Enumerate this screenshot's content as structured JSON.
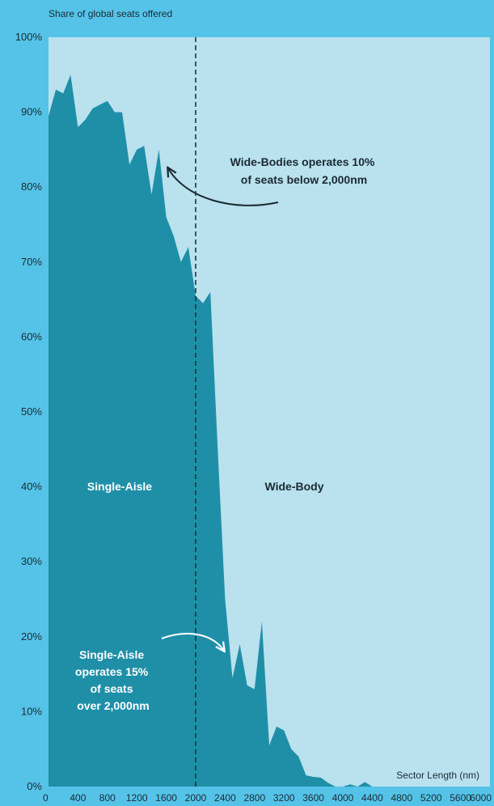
{
  "chart_data": {
    "type": "area",
    "ylabel": "Share of global seats offered",
    "xlabel": "Sector Length (nm)",
    "xlim": [
      0,
      6000
    ],
    "ylim": [
      0,
      100
    ],
    "x_ticks": [
      0,
      400,
      800,
      1200,
      1600,
      2000,
      2400,
      2800,
      3200,
      3600,
      4000,
      4400,
      4800,
      5200,
      5600,
      6000
    ],
    "y_ticks": [
      0,
      10,
      20,
      30,
      40,
      50,
      60,
      70,
      80,
      90,
      100
    ],
    "y_tick_labels": [
      "0%",
      "10%",
      "20%",
      "30%",
      "40%",
      "50%",
      "60%",
      "70%",
      "80%",
      "90%",
      "100%"
    ],
    "reference_line": {
      "x": 2000,
      "style": "dashed"
    },
    "series": [
      {
        "name": "Single-Aisle",
        "color": "#1f8fa8",
        "x": [
          0,
          100,
          200,
          300,
          400,
          500,
          600,
          700,
          800,
          900,
          1000,
          1100,
          1200,
          1300,
          1400,
          1500,
          1600,
          1700,
          1800,
          1900,
          2000,
          2100,
          2200,
          2300,
          2400,
          2500,
          2600,
          2700,
          2800,
          2900,
          3000,
          3100,
          3200,
          3300,
          3400,
          3500,
          3600,
          3700,
          3800,
          3900,
          4000,
          4100,
          4200,
          4300,
          4400,
          4500,
          4600
        ],
        "values": [
          89.5,
          93,
          92.5,
          95,
          88,
          89,
          90.5,
          91,
          91.5,
          90,
          90,
          83,
          85,
          85.5,
          79,
          85,
          76,
          73.5,
          70,
          72,
          65.5,
          64.5,
          66,
          45,
          25,
          14.5,
          19,
          13.5,
          13,
          22,
          5.5,
          8,
          7.5,
          5,
          4,
          1.5,
          1.3,
          1.2,
          0.5,
          0,
          0,
          0.3,
          0,
          0.6,
          0,
          0,
          0
        ]
      },
      {
        "name": "Wide-Body",
        "color": "#b9e1ee"
      }
    ],
    "annotations": [
      {
        "text_lines": [
          "Wide-Bodies operates 10%",
          "of seats below 2,000nm"
        ]
      },
      {
        "text_lines": [
          "Single-Aisle",
          "operates 15%",
          "of seats",
          "over 2,000nm"
        ]
      }
    ]
  }
}
